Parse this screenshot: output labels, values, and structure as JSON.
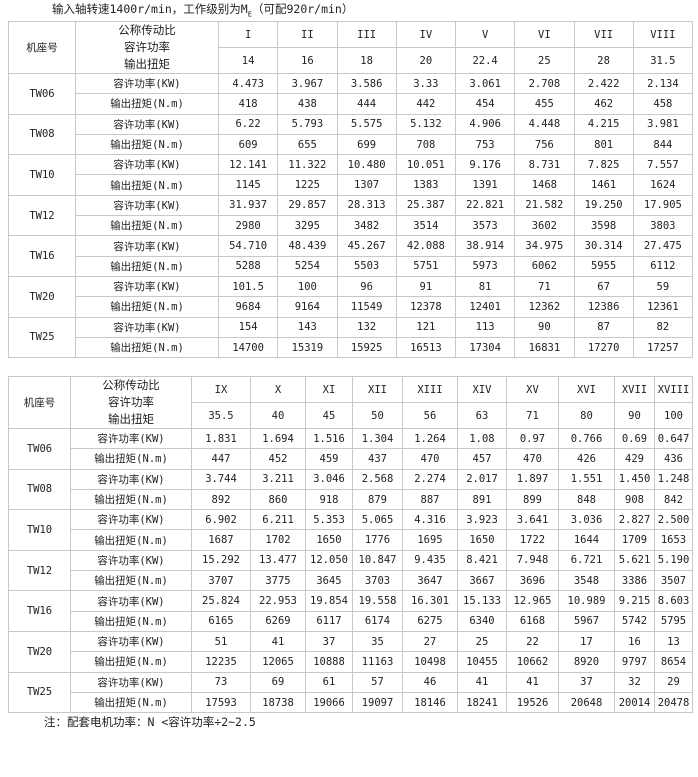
{
  "title": {
    "text": "输入轴转速1400r/min，工作级别为M",
    "sub": "E",
    "suffix": "（可配920r/min）"
  },
  "labels": {
    "frame": "机座号",
    "ratio": "公称传动比",
    "power": "容许功率",
    "torque": "输出扭矩",
    "power_unit": "容许功率(KW)",
    "torque_unit": "输出扭矩(N.m)"
  },
  "tables": [
    {
      "grades": [
        "I",
        "II",
        "III",
        "IV",
        "V",
        "VI",
        "VII",
        "VIII"
      ],
      "ratios": [
        "14",
        "16",
        "18",
        "20",
        "22.4",
        "25",
        "28",
        "31.5"
      ],
      "rows": [
        {
          "frame": "TW06",
          "power": [
            "4.473",
            "3.967",
            "3.586",
            "3.33",
            "3.061",
            "2.708",
            "2.422",
            "2.134"
          ],
          "torque": [
            "418",
            "438",
            "444",
            "442",
            "454",
            "455",
            "462",
            "458"
          ]
        },
        {
          "frame": "TW08",
          "power": [
            "6.22",
            "5.793",
            "5.575",
            "5.132",
            "4.906",
            "4.448",
            "4.215",
            "3.981"
          ],
          "torque": [
            "609",
            "655",
            "699",
            "708",
            "753",
            "756",
            "801",
            "844"
          ]
        },
        {
          "frame": "TW10",
          "power": [
            "12.141",
            "11.322",
            "10.480",
            "10.051",
            "9.176",
            "8.731",
            "7.825",
            "7.557"
          ],
          "torque": [
            "1145",
            "1225",
            "1307",
            "1383",
            "1391",
            "1468",
            "1461",
            "1624"
          ]
        },
        {
          "frame": "TW12",
          "power": [
            "31.937",
            "29.857",
            "28.313",
            "25.387",
            "22.821",
            "21.582",
            "19.250",
            "17.905"
          ],
          "torque": [
            "2980",
            "3295",
            "3482",
            "3514",
            "3573",
            "3602",
            "3598",
            "3803"
          ]
        },
        {
          "frame": "TW16",
          "power": [
            "54.710",
            "48.439",
            "45.267",
            "42.088",
            "38.914",
            "34.975",
            "30.314",
            "27.475"
          ],
          "torque": [
            "5288",
            "5254",
            "5503",
            "5751",
            "5973",
            "6062",
            "5955",
            "6112"
          ]
        },
        {
          "frame": "TW20",
          "power": [
            "101.5",
            "100",
            "96",
            "91",
            "81",
            "71",
            "67",
            "59"
          ],
          "torque": [
            "9684",
            "9164",
            "11549",
            "12378",
            "12401",
            "12362",
            "12386",
            "12361"
          ]
        },
        {
          "frame": "TW25",
          "power": [
            "154",
            "143",
            "132",
            "121",
            "113",
            "90",
            "87",
            "82"
          ],
          "torque": [
            "14700",
            "15319",
            "15925",
            "16513",
            "17304",
            "16831",
            "17270",
            "17257"
          ]
        }
      ]
    },
    {
      "grades": [
        "IX",
        "X",
        "XI",
        "XII",
        "XIII",
        "XIV",
        "XV",
        "XVI",
        "XVII",
        "XVIII"
      ],
      "ratios": [
        "35.5",
        "40",
        "45",
        "50",
        "56",
        "63",
        "71",
        "80",
        "90",
        "100"
      ],
      "rows": [
        {
          "frame": "TW06",
          "power": [
            "1.831",
            "1.694",
            "1.516",
            "1.304",
            "1.264",
            "1.08",
            "0.97",
            "0.766",
            "0.69",
            "0.647"
          ],
          "torque": [
            "447",
            "452",
            "459",
            "437",
            "470",
            "457",
            "470",
            "426",
            "429",
            "436"
          ]
        },
        {
          "frame": "TW08",
          "power": [
            "3.744",
            "3.211",
            "3.046",
            "2.568",
            "2.274",
            "2.017",
            "1.897",
            "1.551",
            "1.450",
            "1.248"
          ],
          "torque": [
            "892",
            "860",
            "918",
            "879",
            "887",
            "891",
            "899",
            "848",
            "908",
            "842"
          ]
        },
        {
          "frame": "TW10",
          "power": [
            "6.902",
            "6.211",
            "5.353",
            "5.065",
            "4.316",
            "3.923",
            "3.641",
            "3.036",
            "2.827",
            "2.500"
          ],
          "torque": [
            "1687",
            "1702",
            "1650",
            "1776",
            "1695",
            "1650",
            "1722",
            "1644",
            "1709",
            "1653"
          ]
        },
        {
          "frame": "TW12",
          "power": [
            "15.292",
            "13.477",
            "12.050",
            "10.847",
            "9.435",
            "8.421",
            "7.948",
            "6.721",
            "5.621",
            "5.190"
          ],
          "torque": [
            "3707",
            "3775",
            "3645",
            "3703",
            "3647",
            "3667",
            "3696",
            "3548",
            "3386",
            "3507"
          ]
        },
        {
          "frame": "TW16",
          "power": [
            "25.824",
            "22.953",
            "19.854",
            "19.558",
            "16.301",
            "15.133",
            "12.965",
            "10.989",
            "9.215",
            "8.603"
          ],
          "torque": [
            "6165",
            "6269",
            "6117",
            "6174",
            "6275",
            "6340",
            "6168",
            "5967",
            "5742",
            "5795"
          ]
        },
        {
          "frame": "TW20",
          "power": [
            "51",
            "41",
            "37",
            "35",
            "27",
            "25",
            "22",
            "17",
            "16",
            "13"
          ],
          "torque": [
            "12235",
            "12065",
            "10888",
            "11163",
            "10498",
            "10455",
            "10662",
            "8920",
            "9797",
            "8654"
          ]
        },
        {
          "frame": "TW25",
          "power": [
            "73",
            "69",
            "61",
            "57",
            "46",
            "41",
            "41",
            "37",
            "32",
            "29"
          ],
          "torque": [
            "17593",
            "18738",
            "19066",
            "19097",
            "18146",
            "18241",
            "19526",
            "20648",
            "20014",
            "20478"
          ]
        }
      ]
    }
  ],
  "note": "注：配套电机功率：N <容许功率÷2~2.5"
}
